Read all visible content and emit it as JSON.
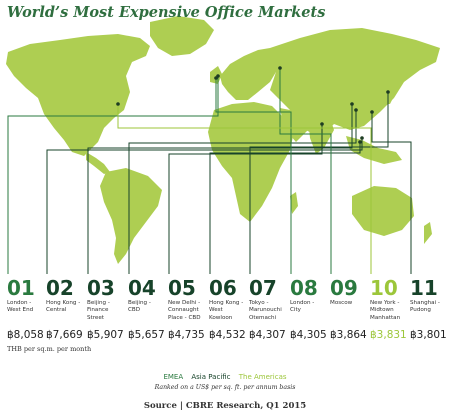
{
  "chart_data": {
    "type": "table",
    "title": "World’s Most Expensive Office Markets",
    "unit": "THB per sq.m. per month",
    "note": "Ranked on a US$ per sq. ft. per annum basis",
    "source": "Source | CBRE Research, Q1 2015",
    "regions": [
      {
        "name": "EMEA",
        "color": "#2a7a3f"
      },
      {
        "name": "Asia Pacific",
        "color": "#17432a"
      },
      {
        "name": "The Americas",
        "color": "#9cc63a"
      }
    ],
    "markets": [
      {
        "rank": "01",
        "name": "London - West End",
        "value": 8058,
        "value_label": "฿8,058",
        "region": "EMEA"
      },
      {
        "rank": "02",
        "name": "Hong Kong - Central",
        "value": 7669,
        "value_label": "฿7,669",
        "region": "Asia Pacific"
      },
      {
        "rank": "03",
        "name": "Beijing - Finance Street",
        "value": 5907,
        "value_label": "฿5,907",
        "region": "Asia Pacific"
      },
      {
        "rank": "04",
        "name": "Beijing - CBD",
        "value": 5657,
        "value_label": "฿5,657",
        "region": "Asia Pacific"
      },
      {
        "rank": "05",
        "name": "New Delhi - Connaught Place - CBD",
        "value": 4735,
        "value_label": "฿4,735",
        "region": "Asia Pacific"
      },
      {
        "rank": "06",
        "name": "Hong Kong - West Kowloon",
        "value": 4532,
        "value_label": "฿4,532",
        "region": "Asia Pacific"
      },
      {
        "rank": "07",
        "name": "Tokyo - Marunouchi Otemachi",
        "value": 4307,
        "value_label": "฿4,307",
        "region": "Asia Pacific"
      },
      {
        "rank": "08",
        "name": "London - City",
        "value": 4305,
        "value_label": "฿4,305",
        "region": "EMEA"
      },
      {
        "rank": "09",
        "name": "Moscow",
        "value": 3864,
        "value_label": "฿3,864",
        "region": "EMEA"
      },
      {
        "rank": "10",
        "name": "New York - Midtown Manhattan",
        "value": 3831,
        "value_label": "฿3,831",
        "region": "The Americas"
      },
      {
        "rank": "11",
        "name": "Shanghai - Pudong",
        "value": 3801,
        "value_label": "฿3,801",
        "region": "Asia Pacific"
      }
    ]
  }
}
